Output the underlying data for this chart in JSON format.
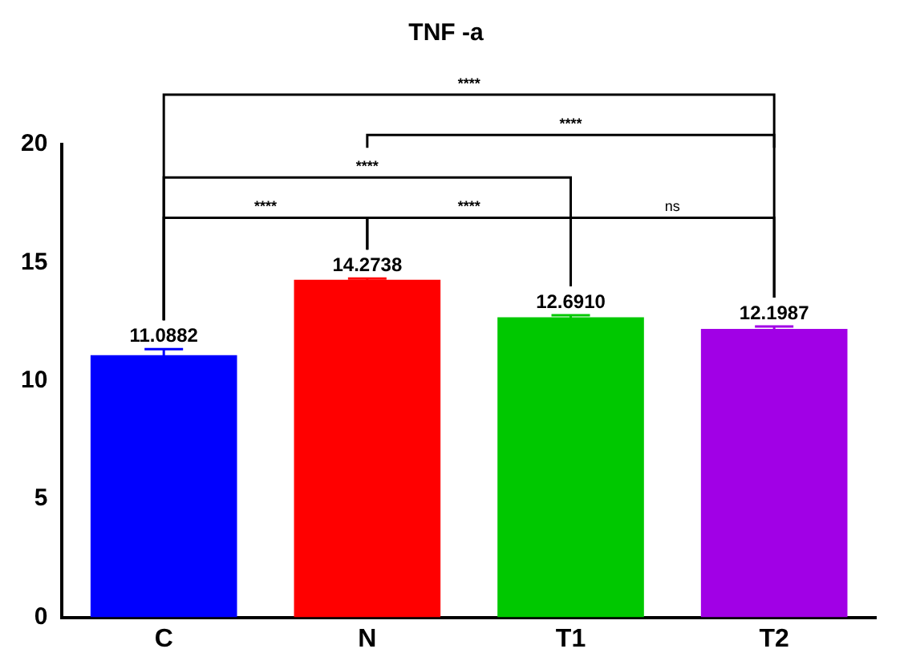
{
  "chart_data": {
    "type": "bar",
    "title": "TNF -a",
    "categories": [
      "C",
      "N",
      "T1",
      "T2"
    ],
    "values": [
      11.0882,
      14.2738,
      12.691,
      12.1987
    ],
    "colors": [
      "#0000ff",
      "#ff0000",
      "#00c800",
      "#a100e6"
    ],
    "errors": [
      0.25,
      0.05,
      0.08,
      0.1
    ],
    "value_labels": [
      "11.0882",
      "14.2738",
      "12.6910",
      "12.1987"
    ],
    "ylim": [
      0,
      20
    ],
    "yticks": [
      0,
      5,
      10,
      15,
      20
    ],
    "grid": false,
    "legend": false,
    "annotations": [
      "****",
      "****",
      "****",
      "****",
      "****",
      "ns"
    ]
  }
}
